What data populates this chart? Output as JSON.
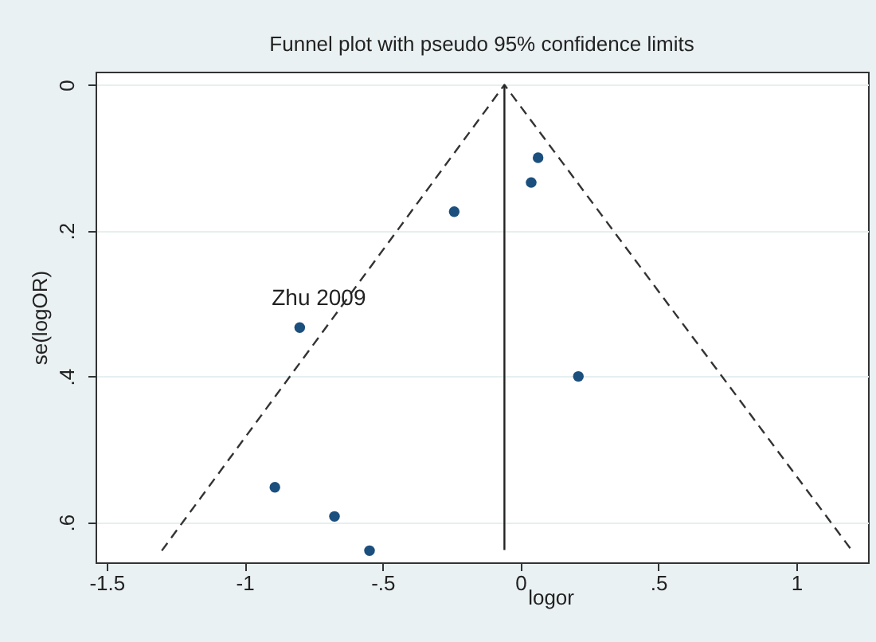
{
  "chart_data": {
    "type": "scatter",
    "title": "Funnel plot with pseudo 95% confidence limits",
    "xlabel": "logor",
    "ylabel": "se(logOR)",
    "series": [
      {
        "color": "#1b4f7e",
        "marker": "circle",
        "x": [
          0.064,
          0.039,
          -0.24,
          -0.8,
          0.21,
          -0.89,
          -0.674,
          -0.547
        ],
        "values": [
          0.1,
          0.134,
          0.174,
          0.333,
          0.4,
          0.552,
          0.592,
          0.639
        ]
      },
      {
        "type": "line",
        "color": "#333333",
        "line_style": "dashed",
        "marker": "none",
        "x": [
          -1.3,
          -0.058,
          1.2
        ],
        "values": [
          0.639,
          0,
          0.638
        ]
      },
      {
        "type": "line",
        "color": "#222222",
        "line_style": "solid",
        "marker": "none",
        "x": [
          -0.058,
          -0.058
        ],
        "values": [
          0,
          0.638
        ]
      }
    ],
    "annotations": [
      {
        "text": "Zhu 2009",
        "x": -0.8,
        "y": 0.333
      }
    ],
    "xlim": [
      -1.54,
      1.26
    ],
    "ylim": [
      0.655,
      -0.018
    ],
    "xticks": [
      {
        "value": -1.5,
        "label": "-1.5"
      },
      {
        "value": -1,
        "label": "-1"
      },
      {
        "value": -0.5,
        "label": "-.5"
      },
      0,
      {
        "value": 0.5,
        "label": ".5"
      },
      1
    ],
    "yticks": [
      0,
      {
        "value": 0.2,
        "label": ".2"
      },
      {
        "value": 0.4,
        "label": ".4"
      },
      {
        "value": 0.6,
        "label": ".6"
      }
    ],
    "grid": "y"
  }
}
